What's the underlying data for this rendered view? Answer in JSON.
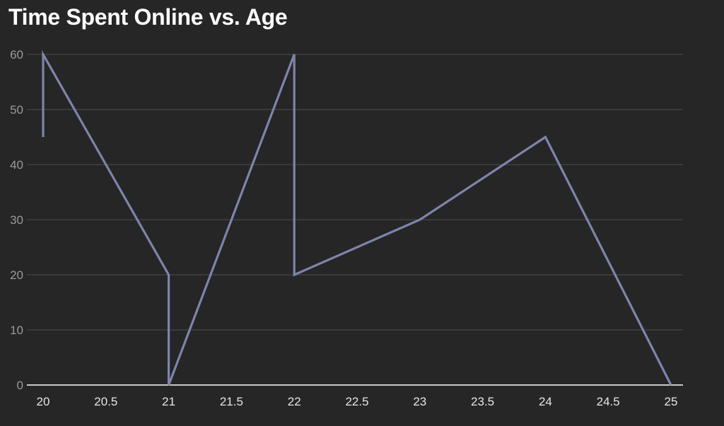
{
  "colors": {
    "background": "#262626",
    "grid": "#474747",
    "axis": "#ffffff",
    "line": "#7e84ab",
    "title": "#ffffff"
  },
  "chart_data": {
    "type": "line",
    "title": "Time Spent Online vs. Age",
    "xlabel": "",
    "ylabel": "",
    "xlim": [
      20,
      25
    ],
    "ylim": [
      0,
      60
    ],
    "x_ticks": [
      "20",
      "20.5",
      "21",
      "21.5",
      "22",
      "22.5",
      "23",
      "23.5",
      "24",
      "24.5",
      "25"
    ],
    "y_ticks": [
      "0",
      "10",
      "20",
      "30",
      "40",
      "50",
      "60"
    ],
    "grid": true,
    "series": [
      {
        "x": [
          20,
          20,
          21,
          21,
          22,
          22,
          23,
          24,
          25
        ],
        "y": [
          45,
          60,
          20,
          0,
          60,
          20,
          30,
          45,
          0
        ]
      }
    ]
  }
}
